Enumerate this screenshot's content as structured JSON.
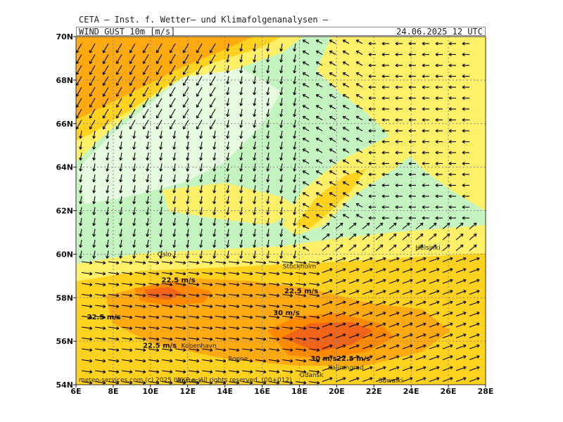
{
  "header": {
    "org": "CETA – Inst. f. Wetter– und Klimafolgenanalysen –",
    "parameter": "WIND_GUST_10m_[m/s]",
    "valid_time": "24.06.2025  12 UTC"
  },
  "axes": {
    "lat_labels": [
      "70N",
      "68N",
      "66N",
      "64N",
      "62N",
      "60N",
      "58N",
      "56N",
      "54N"
    ],
    "lon_labels": [
      "6E",
      "8E",
      "10E",
      "12E",
      "14E",
      "16E",
      "18E",
      "20E",
      "22E",
      "24E",
      "26E",
      "28E"
    ]
  },
  "cities": [
    {
      "name": "Oslo",
      "lon": 10.75,
      "lat": 59.9
    },
    {
      "name": "Stockholm",
      "lon": 18.0,
      "lat": 59.35
    },
    {
      "name": "Helsinki",
      "lon": 24.9,
      "lat": 60.2
    },
    {
      "name": "Kobenhavn",
      "lon": 12.6,
      "lat": 55.7
    },
    {
      "name": "Ronne",
      "lon": 14.7,
      "lat": 55.1
    },
    {
      "name": "Rostock",
      "lon": 12.1,
      "lat": 54.1
    },
    {
      "name": "Kaliningrad",
      "lon": 20.5,
      "lat": 54.7
    },
    {
      "name": "Gdansk",
      "lon": 18.65,
      "lat": 54.35
    },
    {
      "name": "Suwalki",
      "lon": 22.9,
      "lat": 54.1
    }
  ],
  "contour_labels": [
    {
      "text": "22.5 m/s",
      "lon": 11.5,
      "lat": 58.7
    },
    {
      "text": "22.5 m/s",
      "lon": 18.1,
      "lat": 58.2
    },
    {
      "text": "22.5 m/s",
      "lon": 7.5,
      "lat": 57.0
    },
    {
      "text": "30 m/s",
      "lon": 17.3,
      "lat": 57.2
    },
    {
      "text": "22.5 m/s",
      "lon": 10.5,
      "lat": 55.7
    },
    {
      "text": "30 m/s",
      "lon": 19.3,
      "lat": 55.1
    },
    {
      "text": "22.5 m/s",
      "lon": 20.9,
      "lat": 55.1
    }
  ],
  "copyright": "meteo-services.com (c) 2025 IWKF e. All rights reserved. (00+012)",
  "colors": {
    "light_green": "#e6fbe0",
    "green": "#c4f5c0",
    "yellow": "#fff06a",
    "gold": "#ffd21f",
    "orange": "#ffaa10",
    "dark_orange": "#ff8a00",
    "red_orange": "#f26418"
  }
}
